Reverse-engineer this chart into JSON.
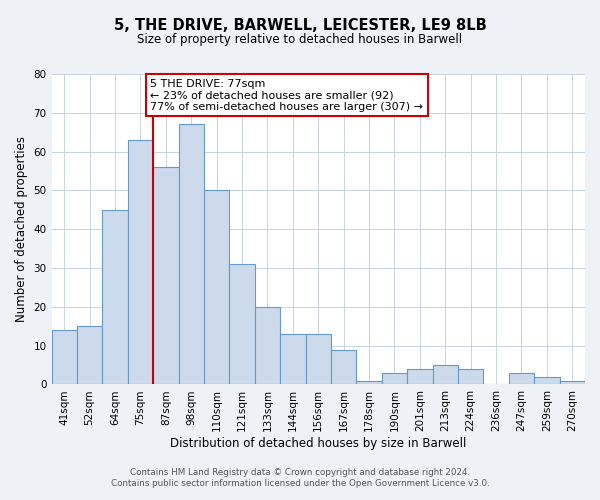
{
  "title": "5, THE DRIVE, BARWELL, LEICESTER, LE9 8LB",
  "subtitle": "Size of property relative to detached houses in Barwell",
  "xlabel": "Distribution of detached houses by size in Barwell",
  "ylabel": "Number of detached properties",
  "bar_labels": [
    "41sqm",
    "52sqm",
    "64sqm",
    "75sqm",
    "87sqm",
    "98sqm",
    "110sqm",
    "121sqm",
    "133sqm",
    "144sqm",
    "156sqm",
    "167sqm",
    "178sqm",
    "190sqm",
    "201sqm",
    "213sqm",
    "224sqm",
    "236sqm",
    "247sqm",
    "259sqm",
    "270sqm"
  ],
  "bar_values": [
    14,
    15,
    45,
    63,
    56,
    67,
    50,
    31,
    20,
    13,
    13,
    9,
    1,
    3,
    4,
    5,
    4,
    0,
    3,
    2,
    1
  ],
  "bar_color": "#ccdaeb",
  "bar_edge_color": "#6699cc",
  "vline_color": "#cc0000",
  "vline_index": 3.5,
  "ylim": [
    0,
    80
  ],
  "yticks": [
    0,
    10,
    20,
    30,
    40,
    50,
    60,
    70,
    80
  ],
  "ann_line1": "5 THE DRIVE: 77sqm",
  "ann_line2": "← 23% of detached houses are smaller (92)",
  "ann_line3": "77% of semi-detached houses are larger (307) →",
  "footer_line1": "Contains HM Land Registry data © Crown copyright and database right 2024.",
  "footer_line2": "Contains public sector information licensed under the Open Government Licence v3.0.",
  "background_color": "#eef2f7",
  "plot_bg_color": "#ffffff",
  "grid_color": "#c8d4e0",
  "title_fontsize": 10.5,
  "subtitle_fontsize": 8.5,
  "ylabel_fontsize": 8.5,
  "xlabel_fontsize": 8.5,
  "tick_fontsize": 7.5,
  "ann_fontsize": 8.0,
  "footer_fontsize": 6.3
}
